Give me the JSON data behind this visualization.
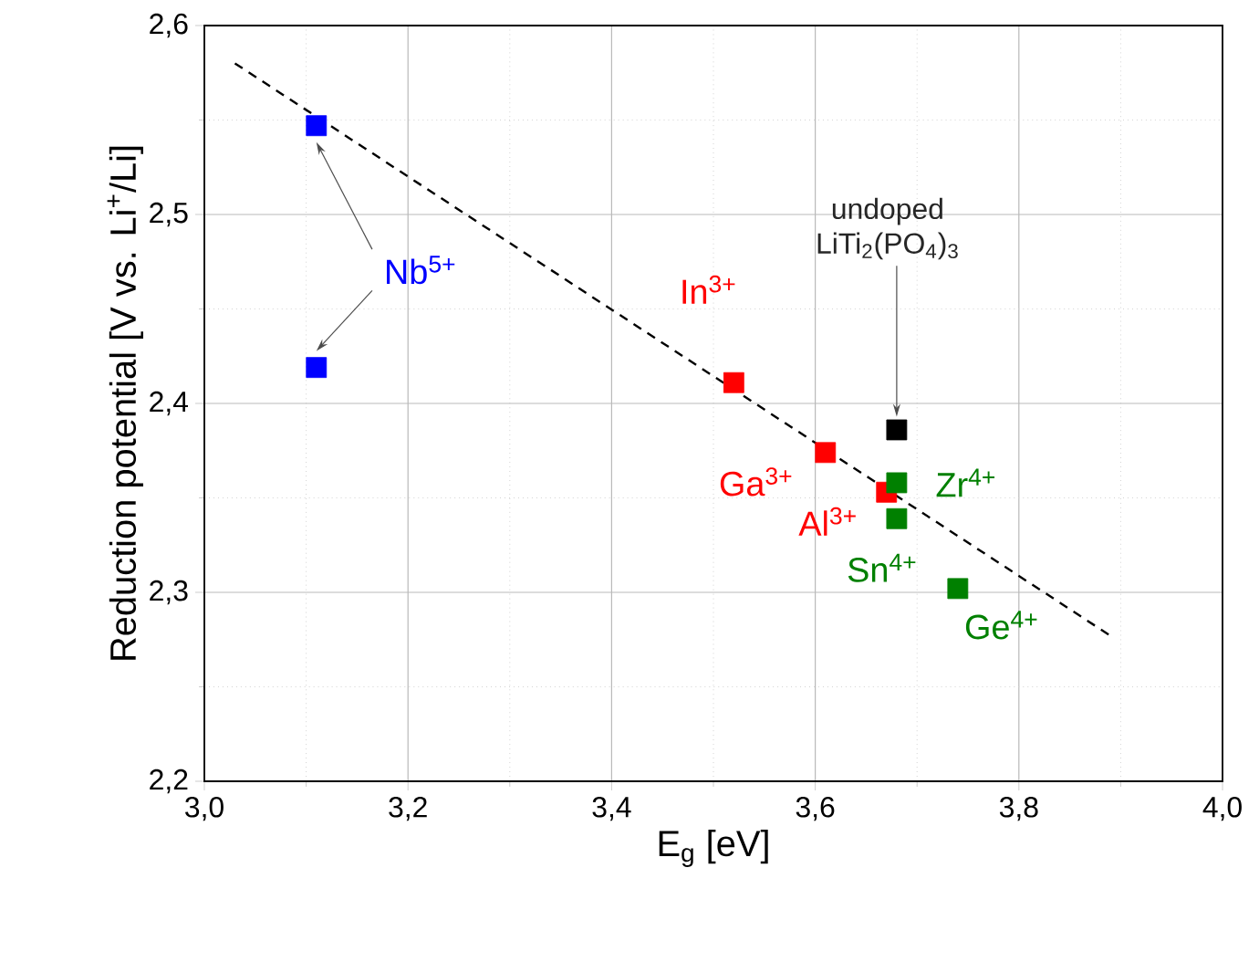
{
  "chart_data": {
    "type": "scatter",
    "xlabel": "E$_{g}$ [eV]",
    "ylabel": "Reduction potential [V vs. Li$^{+}$/Li]",
    "xlim": [
      3.0,
      4.0
    ],
    "ylim": [
      2.2,
      2.6
    ],
    "xticks": [
      {
        "value": 3.0,
        "label": "3,0"
      },
      {
        "value": 3.2,
        "label": "3,2"
      },
      {
        "value": 3.4,
        "label": "3,4"
      },
      {
        "value": 3.6,
        "label": "3,6"
      },
      {
        "value": 3.8,
        "label": "3,8"
      },
      {
        "value": 4.0,
        "label": "4,0"
      }
    ],
    "yticks": [
      {
        "value": 2.2,
        "label": "2,2"
      },
      {
        "value": 2.3,
        "label": "2,3"
      },
      {
        "value": 2.4,
        "label": "2,4"
      },
      {
        "value": 2.5,
        "label": "2,5"
      },
      {
        "value": 2.6,
        "label": "2,6"
      }
    ],
    "grid": true,
    "marker": "square",
    "series": [
      {
        "color": "#0000ff",
        "x": [
          3.11,
          3.11
        ],
        "values": [
          2.547,
          2.419
        ]
      },
      {
        "color": "#ff0000",
        "x": [
          3.52,
          3.61,
          3.67
        ],
        "values": [
          2.411,
          2.374,
          2.353
        ]
      },
      {
        "color": "#000000",
        "x": [
          3.68
        ],
        "values": [
          2.386
        ]
      },
      {
        "color": "#008000",
        "x": [
          3.68,
          3.68,
          3.74
        ],
        "values": [
          2.358,
          2.339,
          2.302
        ]
      },
      {
        "type": "line",
        "color": "#000000",
        "line_style": "dashed",
        "marker": "none",
        "x": [
          3.03,
          3.89
        ],
        "values": [
          2.58,
          2.277
        ]
      }
    ],
    "annotations": [
      "Nb$^{5+}$",
      {
        "text": "In$^{3+}$",
        "x": 3.52,
        "y": 2.411
      },
      {
        "text": "Ga$^{3+}$",
        "x": 3.61,
        "y": 2.374
      },
      {
        "text": "Al$^{3+}$",
        "x": 3.67,
        "y": 2.353
      },
      {
        "text": "undoped LiTi$_{2}$(PO$_{4}$)$_{3}$",
        "x": 3.68,
        "y": 2.393
      },
      {
        "text": "Zr$^{4+}$",
        "x": 3.68,
        "y": 2.358
      },
      {
        "text": "Sn$^{4+}$",
        "x": 3.68,
        "y": 2.339
      },
      {
        "text": "Ge$^{4+}$",
        "x": 3.74,
        "y": 2.302
      }
    ]
  }
}
